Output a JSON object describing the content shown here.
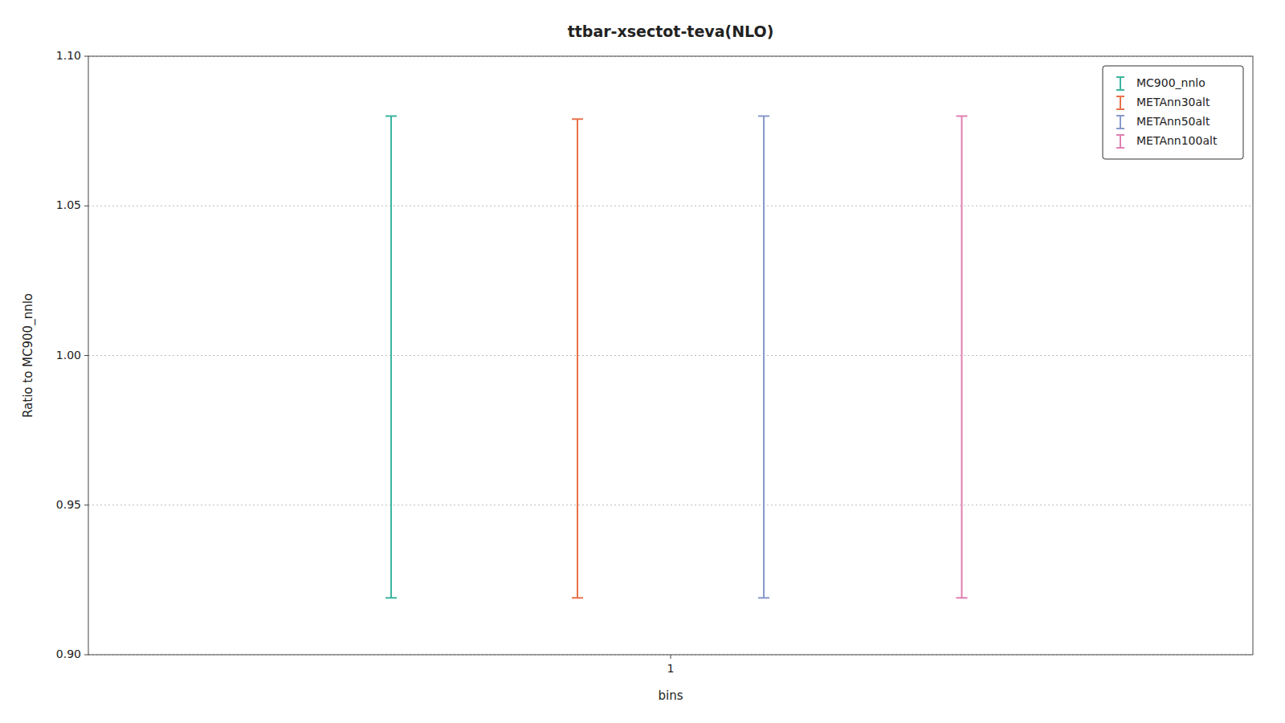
{
  "chart_data": {
    "type": "errorbar",
    "title": "ttbar-xsectot-teva(NLO)",
    "xlabel": "bins",
    "ylabel": "Ratio to MC900_nnlo",
    "xlim": [
      0.5,
      1.5
    ],
    "xticks": [
      1
    ],
    "ylim": [
      0.9,
      1.1
    ],
    "yticks": [
      {
        "value": 0.9,
        "label": "0.90"
      },
      {
        "value": 0.95,
        "label": "0.95"
      },
      {
        "value": 1.0,
        "label": "1.00"
      },
      {
        "value": 1.05,
        "label": "1.05"
      },
      {
        "value": 1.1,
        "label": "1.10"
      }
    ],
    "grid": true,
    "legend": "upper right",
    "series": [
      {
        "name": "MC900_nnlo",
        "color": "#3cb5a0",
        "x": [
          0.76
        ],
        "values": [
          1.0
        ],
        "ylow": [
          0.919
        ],
        "yhigh": [
          1.08
        ]
      },
      {
        "name": "METAnn30alt",
        "color": "#e8724a",
        "x": [
          0.92
        ],
        "values": [
          1.0
        ],
        "ylow": [
          0.919
        ],
        "yhigh": [
          1.079
        ]
      },
      {
        "name": "METAnn50alt",
        "color": "#8899cc",
        "x": [
          1.08
        ],
        "values": [
          1.0
        ],
        "ylow": [
          0.919
        ],
        "yhigh": [
          1.08
        ]
      },
      {
        "name": "METAnn100alt",
        "color": "#e080b0",
        "x": [
          1.25
        ],
        "values": [
          1.0
        ],
        "ylow": [
          0.919
        ],
        "yhigh": [
          1.08
        ]
      }
    ]
  }
}
